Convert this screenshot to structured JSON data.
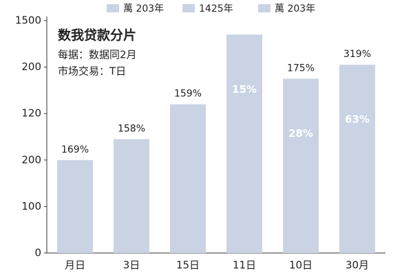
{
  "chart_data": {
    "type": "bar",
    "title": "数我贷款分片",
    "subtitle": [
      "每据：数据同2月",
      "市场交易：T日"
    ],
    "legend": [
      "萬 203年",
      "1425年",
      "萬 203年"
    ],
    "categories": [
      "月日",
      "3日",
      "15日",
      "11日",
      "10日",
      "30月"
    ],
    "values": [
      200,
      245,
      320,
      470,
      375,
      405
    ],
    "bar_labels": [
      "169%",
      "158%",
      "159%",
      null,
      "175%",
      "319%"
    ],
    "inner_labels": [
      null,
      null,
      null,
      "15%",
      "28%",
      "63%"
    ],
    "color": "#c9d3e4",
    "ylim": [
      0,
      500
    ],
    "yticks": [
      0,
      100,
      200,
      {
        "value": 300,
        "label": "120"
      },
      {
        "value": 400,
        "label": "200"
      },
      {
        "value": 500,
        "label": "1500"
      }
    ],
    "grid": false
  }
}
